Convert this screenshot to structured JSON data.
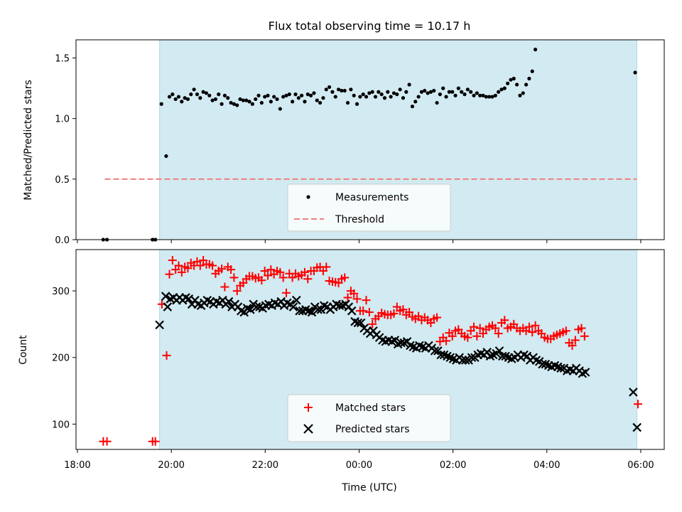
{
  "figure": {
    "title": "Flux total observing time = 10.17 h"
  },
  "colors": {
    "shade": "#add8e6",
    "matched": "#ff0000",
    "predicted": "#000000",
    "measurement": "#000000",
    "threshold": "#f08080"
  },
  "chart_data": [
    {
      "id": "ratio",
      "type": "scatter",
      "ylabel": "Matched/Predicted stars",
      "xlabel": "",
      "x_unit": "hours since 18:00 UTC",
      "xlim": [
        17.97,
        30.5
      ],
      "ylim": [
        0,
        1.65
      ],
      "yticks": [
        0,
        0.5,
        1.0,
        1.5
      ],
      "ytick_labels": [
        "0.0",
        "0.5",
        "1.0",
        "1.5"
      ],
      "shaded_span": [
        "19:45",
        "05:55"
      ],
      "threshold": {
        "name": "Threshold",
        "value": 0.5,
        "x_range": [
          "18:35",
          "05:55"
        ]
      },
      "series": [
        {
          "name": "Measurements",
          "marker": "dot",
          "color": "#000000",
          "segments": [
            {
              "x": [
                18.55,
                18.63,
                19.6,
                19.66
              ],
              "y": [
                0,
                0,
                0,
                0
              ]
            },
            {
              "x": [
                19.79,
                19.89
              ],
              "y": [
                1.12,
                0.69
              ]
            },
            {
              "x_start": 19.96,
              "x_step": 0.0655,
              "y": [
                1.18,
                1.2,
                1.16,
                1.18,
                1.14,
                1.17,
                1.16,
                1.2,
                1.24,
                1.2,
                1.17,
                1.22,
                1.21,
                1.19,
                1.15,
                1.16,
                1.2,
                1.12,
                1.19,
                1.17,
                1.13,
                1.12,
                1.11,
                1.16,
                1.15,
                1.15,
                1.14,
                1.12,
                1.16,
                1.19,
                1.13,
                1.18,
                1.19,
                1.14,
                1.18,
                1.16,
                1.08,
                1.18,
                1.19,
                1.2,
                1.14,
                1.2,
                1.17,
                1.19,
                1.14,
                1.2,
                1.19,
                1.21,
                1.15,
                1.13,
                1.17,
                1.24,
                1.26,
                1.22,
                1.18,
                1.24,
                1.23,
                1.23,
                1.13,
                1.24,
                1.19,
                1.12,
                1.18,
                1.2,
                1.18,
                1.21,
                1.22,
                1.18,
                1.22,
                1.2,
                1.17,
                1.22,
                1.18,
                1.21,
                1.2,
                1.24,
                1.17,
                1.22,
                1.28,
                1.1,
                1.14,
                1.18,
                1.22,
                1.23,
                1.21,
                1.22,
                1.23,
                1.13,
                1.2,
                1.25,
                1.18,
                1.22,
                1.22,
                1.19,
                1.25,
                1.22,
                1.2,
                1.24,
                1.22,
                1.19,
                1.21,
                1.19,
                1.19,
                1.18,
                1.18,
                1.18,
                1.19,
                1.22,
                1.24,
                1.25,
                1.29,
                1.32,
                1.33,
                1.28,
                1.19,
                1.21,
                1.28,
                1.33,
                1.39,
                1.57
              ]
            },
            {
              "x": [
                29.88
              ],
              "y": [
                1.38
              ]
            }
          ]
        }
      ],
      "legend": {
        "placement": "lower center",
        "entries": [
          "Measurements",
          "Threshold"
        ]
      }
    },
    {
      "id": "counts",
      "type": "scatter",
      "ylabel": "Count",
      "xlabel": "Time (UTC)",
      "x_unit": "hours since 18:00 UTC",
      "xlim": [
        17.97,
        30.5
      ],
      "ylim": [
        62,
        362
      ],
      "yticks": [
        100,
        200,
        300
      ],
      "ytick_labels": [
        "100",
        "200",
        "300"
      ],
      "xticks": [
        18,
        20,
        22,
        24,
        26,
        28,
        30
      ],
      "xtick_labels": [
        "18:00",
        "20:00",
        "22:00",
        "00:00",
        "02:00",
        "04:00",
        "06:00"
      ],
      "shaded_span": [
        "19:45",
        "05:55"
      ],
      "series": [
        {
          "name": "Matched stars",
          "marker": "plus",
          "color": "#ff0000",
          "segments": [
            {
              "x": [
                18.55,
                18.63,
                19.6,
                19.66,
                19.8,
                19.9
              ],
              "y": [
                74,
                74,
                74,
                74,
                280,
                203
              ]
            },
            {
              "x_start": 19.96,
              "x_step": 0.0655,
              "y": [
                325,
                346,
                332,
                338,
                328,
                336,
                334,
                342,
                338,
                344,
                338,
                346,
                340,
                340,
                338,
                326,
                330,
                333,
                306,
                336,
                332,
                320,
                300,
                308,
                312,
                318,
                322,
                322,
                319,
                320,
                316,
                330,
                323,
                332,
                325,
                330,
                328,
                320,
                297,
                326,
                320,
                326,
                322,
                324,
                328,
                318,
                330,
                330,
                335,
                336,
                330,
                336,
                315,
                314,
                313,
                312,
                318,
                320,
                290,
                300,
                296,
                288,
                270,
                270,
                286,
                268,
                250,
                258,
                262,
                267,
                265,
                264,
                264,
                266,
                276,
                270,
                272,
                264,
                268,
                261,
                258,
                262,
                256,
                260,
                256,
                252,
                258,
                260,
                224,
                230,
                225,
                237,
                232,
                240,
                242,
                236,
                232,
                230,
                240,
                246,
                232,
                244,
                236,
                242,
                246,
                248,
                244,
                236,
                252,
                256,
                244,
                246,
                250,
                244,
                240,
                244,
                240,
                246,
                238,
                248,
                240,
                236,
                230,
                228,
                228,
                232,
                234,
                236,
                238,
                240,
                222,
                218,
                226,
                242,
                244,
                232
              ]
            },
            {
              "x": [
                29.94
              ],
              "y": [
                130
              ]
            }
          ]
        },
        {
          "name": "Predicted stars",
          "marker": "x",
          "color": "#000000",
          "segments": [
            {
              "x": [
                19.75,
                19.88,
                19.92
              ],
              "y": [
                249,
                292,
                276
              ]
            },
            {
              "x_start": 19.98,
              "x_step": 0.0655,
              "y": [
                288,
                290,
                286,
                290,
                286,
                290,
                288,
                280,
                286,
                280,
                278,
                282,
                286,
                284,
                280,
                284,
                282,
                286,
                280,
                284,
                276,
                280,
                276,
                270,
                268,
                274,
                272,
                280,
                276,
                276,
                274,
                278,
                280,
                278,
                282,
                280,
                284,
                278,
                282,
                280,
                276,
                286,
                270,
                270,
                272,
                270,
                268,
                276,
                272,
                272,
                278,
                276,
                272,
                276,
                280,
                278,
                278,
                280,
                276,
                270,
                254,
                252,
                252,
                244,
                240,
                236,
                240,
                234,
                230,
                226,
                224,
                226,
                224,
                226,
                220,
                222,
                222,
                224,
                218,
                216,
                214,
                218,
                216,
                214,
                218,
                214,
                210,
                210,
                204,
                204,
                202,
                200,
                198,
                196,
                200,
                196,
                196,
                196,
                200,
                200,
                204,
                206,
                204,
                208,
                202,
                204,
                206,
                210,
                202,
                202,
                200,
                198,
                200,
                204,
                200,
                204,
                202,
                196,
                200,
                196,
                194,
                190,
                190,
                188,
                186,
                188,
                186,
                184,
                184,
                180,
                182,
                180,
                184,
                180,
                176,
                178
              ]
            },
            {
              "x": [
                29.84,
                29.92
              ],
              "y": [
                148,
                95
              ]
            }
          ]
        }
      ],
      "legend": {
        "placement": "lower center",
        "entries": [
          "Matched stars",
          "Predicted stars"
        ]
      }
    }
  ]
}
